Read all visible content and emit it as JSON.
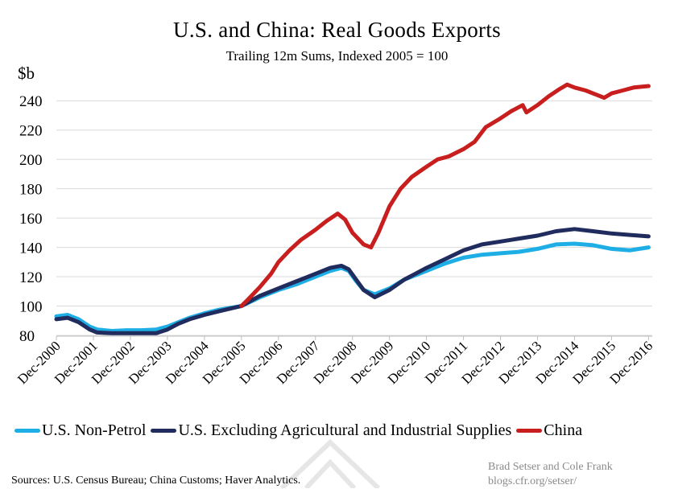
{
  "chart_data": {
    "type": "line",
    "title": "U.S. and China: Real Goods Exports",
    "subtitle": "Trailing 12m Sums, Indexed 2005 = 100",
    "ylabel": "$b",
    "ylim": [
      80,
      250
    ],
    "yticks": [
      80,
      100,
      120,
      140,
      160,
      180,
      200,
      220,
      240
    ],
    "xlim": [
      2000.9,
      2017.0
    ],
    "xticks": [
      {
        "x": 2000.9,
        "label": "Dec-2000"
      },
      {
        "x": 2001.9,
        "label": "Dec-2001"
      },
      {
        "x": 2002.9,
        "label": "Dec-2002"
      },
      {
        "x": 2003.9,
        "label": "Dec-2003"
      },
      {
        "x": 2004.9,
        "label": "Dec-2004"
      },
      {
        "x": 2005.9,
        "label": "Dec-2005"
      },
      {
        "x": 2006.9,
        "label": "Dec-2006"
      },
      {
        "x": 2007.9,
        "label": "Dec-2007"
      },
      {
        "x": 2008.9,
        "label": "Dec-2008"
      },
      {
        "x": 2009.9,
        "label": "Dec-2009"
      },
      {
        "x": 2010.9,
        "label": "Dec-2010"
      },
      {
        "x": 2011.9,
        "label": "Dec-2011"
      },
      {
        "x": 2012.9,
        "label": "Dec-2012"
      },
      {
        "x": 2013.9,
        "label": "Dec-2013"
      },
      {
        "x": 2014.9,
        "label": "Dec-2014"
      },
      {
        "x": 2015.9,
        "label": "Dec-2015"
      },
      {
        "x": 2016.9,
        "label": "Dec-2016"
      }
    ],
    "grid": true,
    "legend_position": "bottom",
    "series": [
      {
        "name": "U.S. Non-Petrol",
        "color": "#1eaee6",
        "points": [
          [
            2000.9,
            93
          ],
          [
            2001.2,
            94
          ],
          [
            2001.5,
            91
          ],
          [
            2001.8,
            86
          ],
          [
            2002.0,
            84
          ],
          [
            2002.4,
            83
          ],
          [
            2002.8,
            83.5
          ],
          [
            2003.2,
            83.5
          ],
          [
            2003.6,
            84
          ],
          [
            2003.9,
            86
          ],
          [
            2004.2,
            89
          ],
          [
            2004.5,
            92
          ],
          [
            2004.9,
            95
          ],
          [
            2005.3,
            97.5
          ],
          [
            2005.9,
            100
          ],
          [
            2006.4,
            106
          ],
          [
            2006.9,
            111
          ],
          [
            2007.4,
            115
          ],
          [
            2007.9,
            120
          ],
          [
            2008.3,
            124
          ],
          [
            2008.6,
            126
          ],
          [
            2008.8,
            124
          ],
          [
            2009.0,
            117
          ],
          [
            2009.2,
            111
          ],
          [
            2009.5,
            108
          ],
          [
            2009.9,
            112
          ],
          [
            2010.3,
            118
          ],
          [
            2010.9,
            124
          ],
          [
            2011.4,
            129
          ],
          [
            2011.9,
            133
          ],
          [
            2012.4,
            135
          ],
          [
            2012.9,
            136
          ],
          [
            2013.4,
            137
          ],
          [
            2013.9,
            139
          ],
          [
            2014.4,
            142
          ],
          [
            2014.9,
            142.5
          ],
          [
            2015.4,
            141.5
          ],
          [
            2015.9,
            139
          ],
          [
            2016.4,
            138
          ],
          [
            2016.9,
            140
          ]
        ]
      },
      {
        "name": "U.S. Excluding Agricultural and Industrial Supplies",
        "color": "#202c5e",
        "points": [
          [
            2000.9,
            91
          ],
          [
            2001.2,
            92
          ],
          [
            2001.5,
            89
          ],
          [
            2001.8,
            84
          ],
          [
            2002.0,
            82
          ],
          [
            2002.4,
            81.5
          ],
          [
            2002.8,
            81.5
          ],
          [
            2003.2,
            81.5
          ],
          [
            2003.6,
            81.5
          ],
          [
            2003.9,
            84
          ],
          [
            2004.2,
            88
          ],
          [
            2004.5,
            91
          ],
          [
            2004.9,
            94
          ],
          [
            2005.3,
            96.5
          ],
          [
            2005.9,
            100
          ],
          [
            2006.4,
            107
          ],
          [
            2006.9,
            112
          ],
          [
            2007.4,
            117
          ],
          [
            2007.9,
            122
          ],
          [
            2008.3,
            126
          ],
          [
            2008.6,
            127.5
          ],
          [
            2008.8,
            125
          ],
          [
            2009.0,
            118
          ],
          [
            2009.2,
            111
          ],
          [
            2009.5,
            106
          ],
          [
            2009.9,
            111
          ],
          [
            2010.3,
            118
          ],
          [
            2010.9,
            126
          ],
          [
            2011.4,
            132
          ],
          [
            2011.9,
            138
          ],
          [
            2012.4,
            142
          ],
          [
            2012.9,
            144
          ],
          [
            2013.4,
            146
          ],
          [
            2013.9,
            148
          ],
          [
            2014.4,
            151
          ],
          [
            2014.9,
            152.5
          ],
          [
            2015.4,
            151
          ],
          [
            2015.9,
            149.5
          ],
          [
            2016.4,
            148.5
          ],
          [
            2016.9,
            147.5
          ]
        ]
      },
      {
        "name": "China",
        "color": "#c81e1e",
        "points": [
          [
            2005.9,
            100
          ],
          [
            2006.1,
            105
          ],
          [
            2006.4,
            113
          ],
          [
            2006.7,
            122
          ],
          [
            2006.9,
            130
          ],
          [
            2007.2,
            138
          ],
          [
            2007.5,
            145
          ],
          [
            2007.9,
            152
          ],
          [
            2008.2,
            158
          ],
          [
            2008.5,
            163
          ],
          [
            2008.7,
            159
          ],
          [
            2008.9,
            150
          ],
          [
            2009.2,
            142
          ],
          [
            2009.4,
            140
          ],
          [
            2009.6,
            150
          ],
          [
            2009.9,
            168
          ],
          [
            2010.2,
            180
          ],
          [
            2010.5,
            188
          ],
          [
            2010.9,
            195
          ],
          [
            2011.2,
            200
          ],
          [
            2011.5,
            202
          ],
          [
            2011.9,
            207
          ],
          [
            2012.2,
            212
          ],
          [
            2012.5,
            222
          ],
          [
            2012.9,
            228
          ],
          [
            2013.2,
            233
          ],
          [
            2013.5,
            237
          ],
          [
            2013.6,
            232
          ],
          [
            2013.9,
            237
          ],
          [
            2014.2,
            243
          ],
          [
            2014.5,
            248
          ],
          [
            2014.7,
            251
          ],
          [
            2014.9,
            249
          ],
          [
            2015.2,
            247
          ],
          [
            2015.5,
            244
          ],
          [
            2015.7,
            242
          ],
          [
            2015.9,
            245
          ],
          [
            2016.2,
            247
          ],
          [
            2016.5,
            249
          ],
          [
            2016.9,
            250
          ]
        ]
      }
    ]
  },
  "source_note": "Sources: U.S. Census Bureau; China Customs; Haver Analytics.",
  "credit_line1": "Brad Setser and Cole Frank",
  "credit_line2": "blogs.cfr.org/setser/"
}
